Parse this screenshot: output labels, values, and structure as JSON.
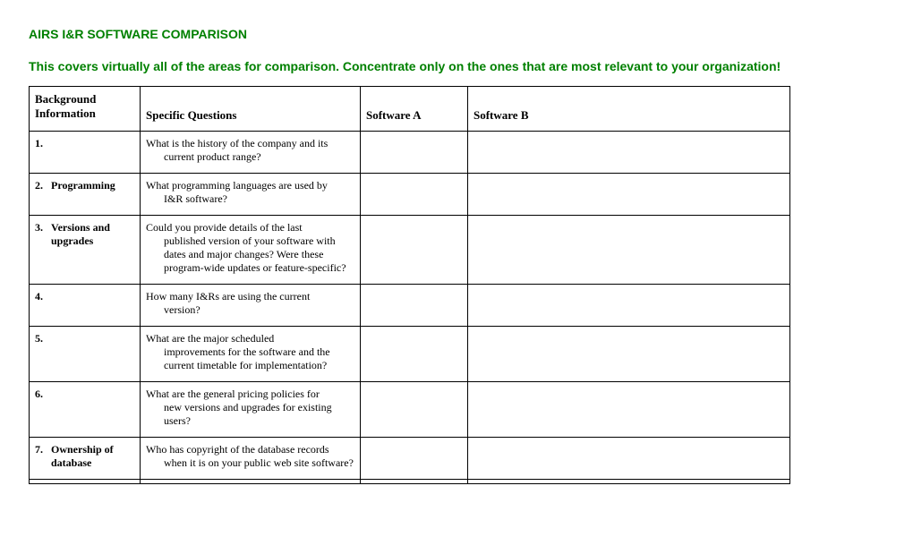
{
  "title": "AIRS I&R SOFTWARE COMPARISON",
  "subtitle": "This covers virtually all of the areas for comparison. Concentrate only on the ones that are most relevant to your organization!",
  "headers": {
    "col1": "Background Information",
    "col2": "Specific Questions",
    "col3": "Software A",
    "col4": "Software B"
  },
  "rows": [
    {
      "num": "1.",
      "label": "",
      "q_first": "What is the history of the company and its",
      "q_rest": "current product range?"
    },
    {
      "num": "2.",
      "label": "Programming",
      "q_first": "What programming languages are used by",
      "q_rest": "I&R software?"
    },
    {
      "num": "3.",
      "label": "Versions and upgrades",
      "q_first": "Could you provide details of the last",
      "q_rest": "published version of your software with dates and major changes? Were these program-wide updates or feature-specific?"
    },
    {
      "num": "4.",
      "label": "",
      "q_first": "How many I&Rs are using the current",
      "q_rest": "version?"
    },
    {
      "num": "5.",
      "label": "",
      "q_first": "What are the major scheduled",
      "q_rest": "improvements for the software and the current timetable for implementation?"
    },
    {
      "num": "6.",
      "label": "",
      "q_first": "What are the general pricing policies for",
      "q_rest": "new versions and upgrades for existing users?"
    },
    {
      "num": "7.",
      "label": "Ownership of database",
      "q_first": "Who has copyright of the database records",
      "q_rest": "when it is on your public web site software?"
    }
  ]
}
